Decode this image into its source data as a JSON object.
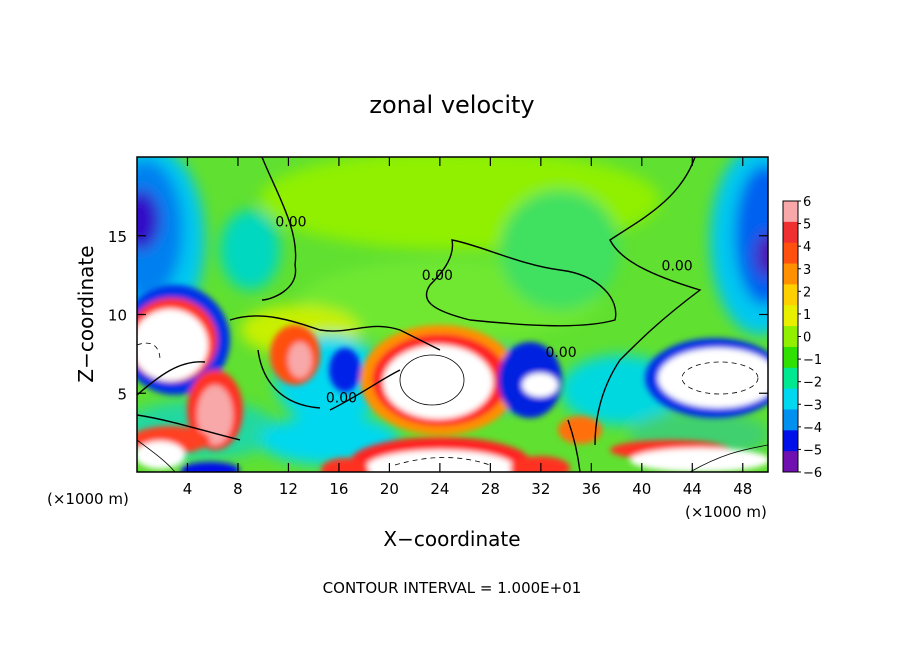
{
  "chart_data": {
    "type": "heatmap",
    "title": "zonal velocity",
    "xlabel": "X−coordinate",
    "ylabel": "Z−coordinate",
    "x_unit_label": "(×1000 m)",
    "x_unit_label_right": "(×1000 m)",
    "footer": "CONTOUR INTERVAL = 1.000E+01",
    "xlim": [
      0,
      50
    ],
    "ylim": [
      0,
      20
    ],
    "x_ticks": [
      4,
      8,
      12,
      16,
      20,
      24,
      28,
      32,
      36,
      40,
      44,
      48
    ],
    "y_ticks": [
      5,
      10,
      15
    ],
    "colorbar": {
      "min": -6,
      "max": 6,
      "tick_values": [
        6,
        5,
        4,
        3,
        2,
        1,
        0,
        -1,
        -2,
        -3,
        -4,
        -5,
        -6
      ],
      "tick_labels": [
        "6",
        "5",
        "4",
        "3",
        "2",
        "1",
        "0",
        "−1",
        "−2",
        "−3",
        "−4",
        "−5",
        "−6"
      ],
      "colors": [
        "#f8a8a8",
        "#f03030",
        "#ff5010",
        "#ff9000",
        "#ffd000",
        "#e8f000",
        "#90f000",
        "#30e000",
        "#00e890",
        "#00d8f0",
        "#0090f0",
        "#0010e8",
        "#7010b0"
      ]
    },
    "contour_labels": [
      {
        "text": "0.00",
        "x": 12.2,
        "z": 15.6
      },
      {
        "text": "0.00",
        "x": 23.8,
        "z": 12.2
      },
      {
        "text": "0.00",
        "x": 42.8,
        "z": 12.8
      },
      {
        "text": "0.00",
        "x": 33.6,
        "z": 7.3
      },
      {
        "text": "0.00",
        "x": 16.2,
        "z": 4.4
      }
    ]
  }
}
